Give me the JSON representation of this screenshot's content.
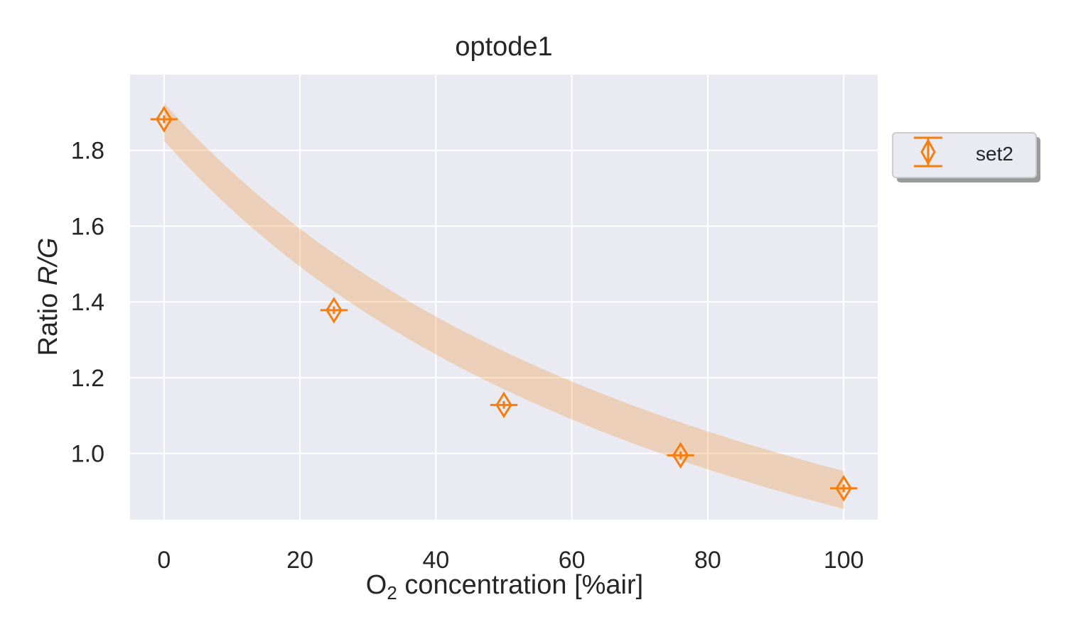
{
  "chart_data": {
    "type": "scatter",
    "title": "optode1",
    "xlabel": {
      "prefix": "O",
      "subscript": "2",
      "suffix": " concentration [%air]"
    },
    "ylabel": {
      "prefix": "Ratio ",
      "italic": "R/G"
    },
    "xlim": [
      -5,
      105
    ],
    "ylim": [
      0.825,
      2.0
    ],
    "xticks": [
      0,
      20,
      40,
      60,
      80,
      100
    ],
    "xtick_labels": [
      "0",
      "20",
      "40",
      "60",
      "80",
      "100"
    ],
    "yticks": [
      1.0,
      1.2,
      1.4,
      1.6,
      1.8
    ],
    "ytick_labels": [
      "1.0",
      "1.2",
      "1.4",
      "1.6",
      "1.8"
    ],
    "grid": true,
    "legend_position": "outside-right-top",
    "series": [
      {
        "name": "set2",
        "color": "#f57f0e",
        "marker": "thin-diamond",
        "x": [
          0,
          25,
          50,
          76,
          100
        ],
        "y": [
          1.882,
          1.378,
          1.128,
          0.995,
          0.908
        ],
        "xerr": [
          2,
          2,
          2,
          2,
          2
        ],
        "yerr": [
          0.01,
          0.01,
          0.01,
          0.01,
          0.01
        ]
      }
    ],
    "fit_band": {
      "color": "#f57f0e",
      "opacity": 0.25,
      "model": "stern-volmer",
      "i0": 1.875,
      "ksv": 0.01075,
      "width": 0.05,
      "x_range": [
        0,
        100
      ]
    },
    "colors": {
      "axes_background": "#eaeaf2",
      "grid": "#ffffff"
    }
  }
}
